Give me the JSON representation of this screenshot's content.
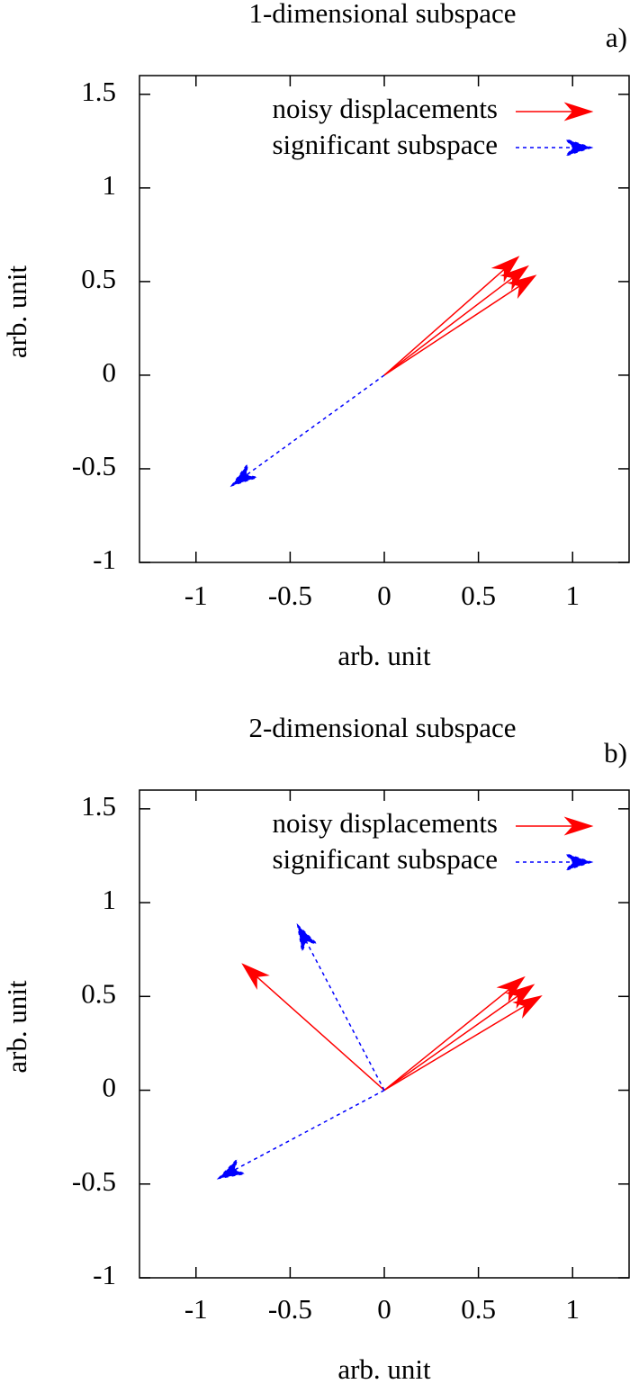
{
  "chart_data": [
    {
      "type": "vector",
      "title": "1-dimensional subspace",
      "panel_label": "a)",
      "xlabel": "arb. unit",
      "ylabel": "arb. unit",
      "xlim": [
        -1.3,
        1.3
      ],
      "ylim": [
        -1,
        1.6
      ],
      "xticks": [
        -1,
        -0.5,
        0,
        0.5,
        1
      ],
      "yticks": [
        -1,
        -0.5,
        0,
        0.5,
        1,
        1.5
      ],
      "legend": "top right",
      "series": [
        {
          "name": "noisy displacements",
          "color": "#ff0000",
          "dashed": false,
          "x": [
            0.8,
            0.76,
            0.71
          ],
          "y": [
            0.53,
            0.58,
            0.63
          ]
        },
        {
          "name": "significant subspace",
          "color": "#0000ff",
          "dashed": true,
          "x": [
            -0.81
          ],
          "y": [
            -0.59
          ]
        }
      ]
    },
    {
      "type": "vector",
      "title": "2-dimensional subspace",
      "panel_label": "b)",
      "xlabel": "arb. unit",
      "ylabel": "arb. unit",
      "xlim": [
        -1.3,
        1.3
      ],
      "ylim": [
        -1,
        1.6
      ],
      "xticks": [
        -1,
        -0.5,
        0,
        0.5,
        1
      ],
      "yticks": [
        -1,
        -0.5,
        0,
        0.5,
        1,
        1.5
      ],
      "legend": "top right",
      "series": [
        {
          "name": "noisy displacements",
          "color": "#ff0000",
          "dashed": false,
          "x": [
            0.83,
            0.79,
            0.74,
            -0.75
          ],
          "y": [
            0.5,
            0.56,
            0.6,
            0.67
          ]
        },
        {
          "name": "significant subspace",
          "color": "#0000ff",
          "dashed": true,
          "x": [
            -0.46,
            -0.88
          ],
          "y": [
            0.88,
            -0.47
          ]
        }
      ]
    }
  ]
}
